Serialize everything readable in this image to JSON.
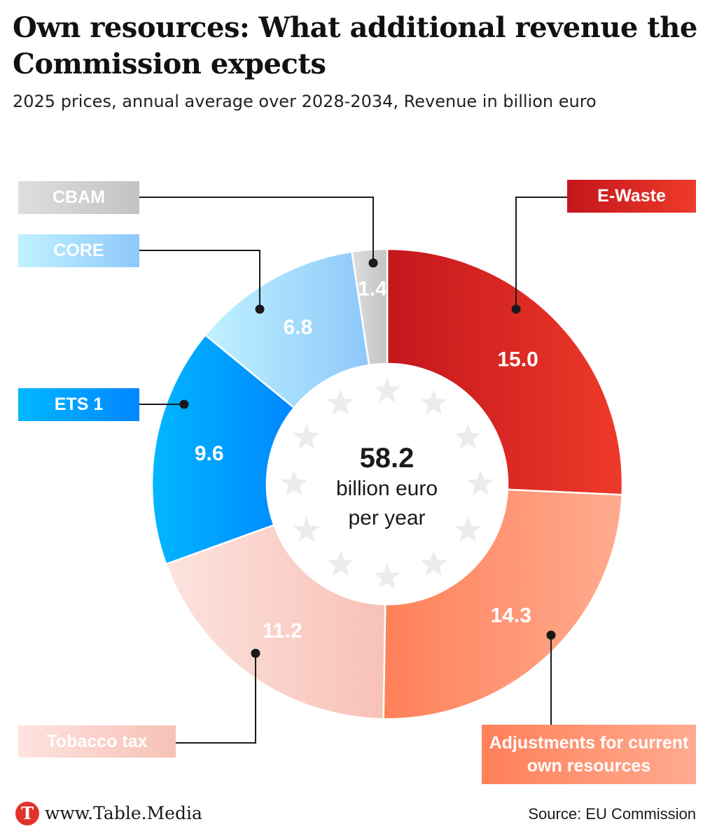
{
  "title": "Own resources: What additional revenue the Commission expects",
  "subtitle": "2025 prices, annual average over 2028-2034, Revenue in billion euro",
  "center": {
    "value": "58.2",
    "unit_line1": "billion euro",
    "unit_line2": "per year"
  },
  "chart_data": {
    "type": "pie",
    "donut": true,
    "unit": "billion euro",
    "total": 58.2,
    "start": "top, clockwise",
    "slices": [
      {
        "label": "E-Waste",
        "value": 15.0,
        "value_label": "15.0",
        "colors": [
          "#c4161c",
          "#ee3a2a"
        ]
      },
      {
        "label": "Adjustments for current own resources",
        "value": 14.3,
        "value_label": "14.3",
        "colors": [
          "#ff8059",
          "#ffab8f"
        ]
      },
      {
        "label": "Tobacco tax",
        "value": 11.2,
        "value_label": "11.2",
        "colors": [
          "#fde3df",
          "#f7c1b6"
        ]
      },
      {
        "label": "ETS 1",
        "value": 9.6,
        "value_label": "9.6",
        "colors": [
          "#00b7ff",
          "#0086ff"
        ]
      },
      {
        "label": "CORE",
        "value": 6.8,
        "value_label": "6.8",
        "colors": [
          "#c0f2ff",
          "#8ec8fa"
        ]
      },
      {
        "label": "CBAM",
        "value": 1.4,
        "value_label": "1.4",
        "colors": [
          "#dedede",
          "#c3c3c3"
        ]
      }
    ]
  },
  "footer": {
    "logo_letter": "T",
    "site": "www.Table.Media",
    "source": "Source: EU Commission"
  }
}
